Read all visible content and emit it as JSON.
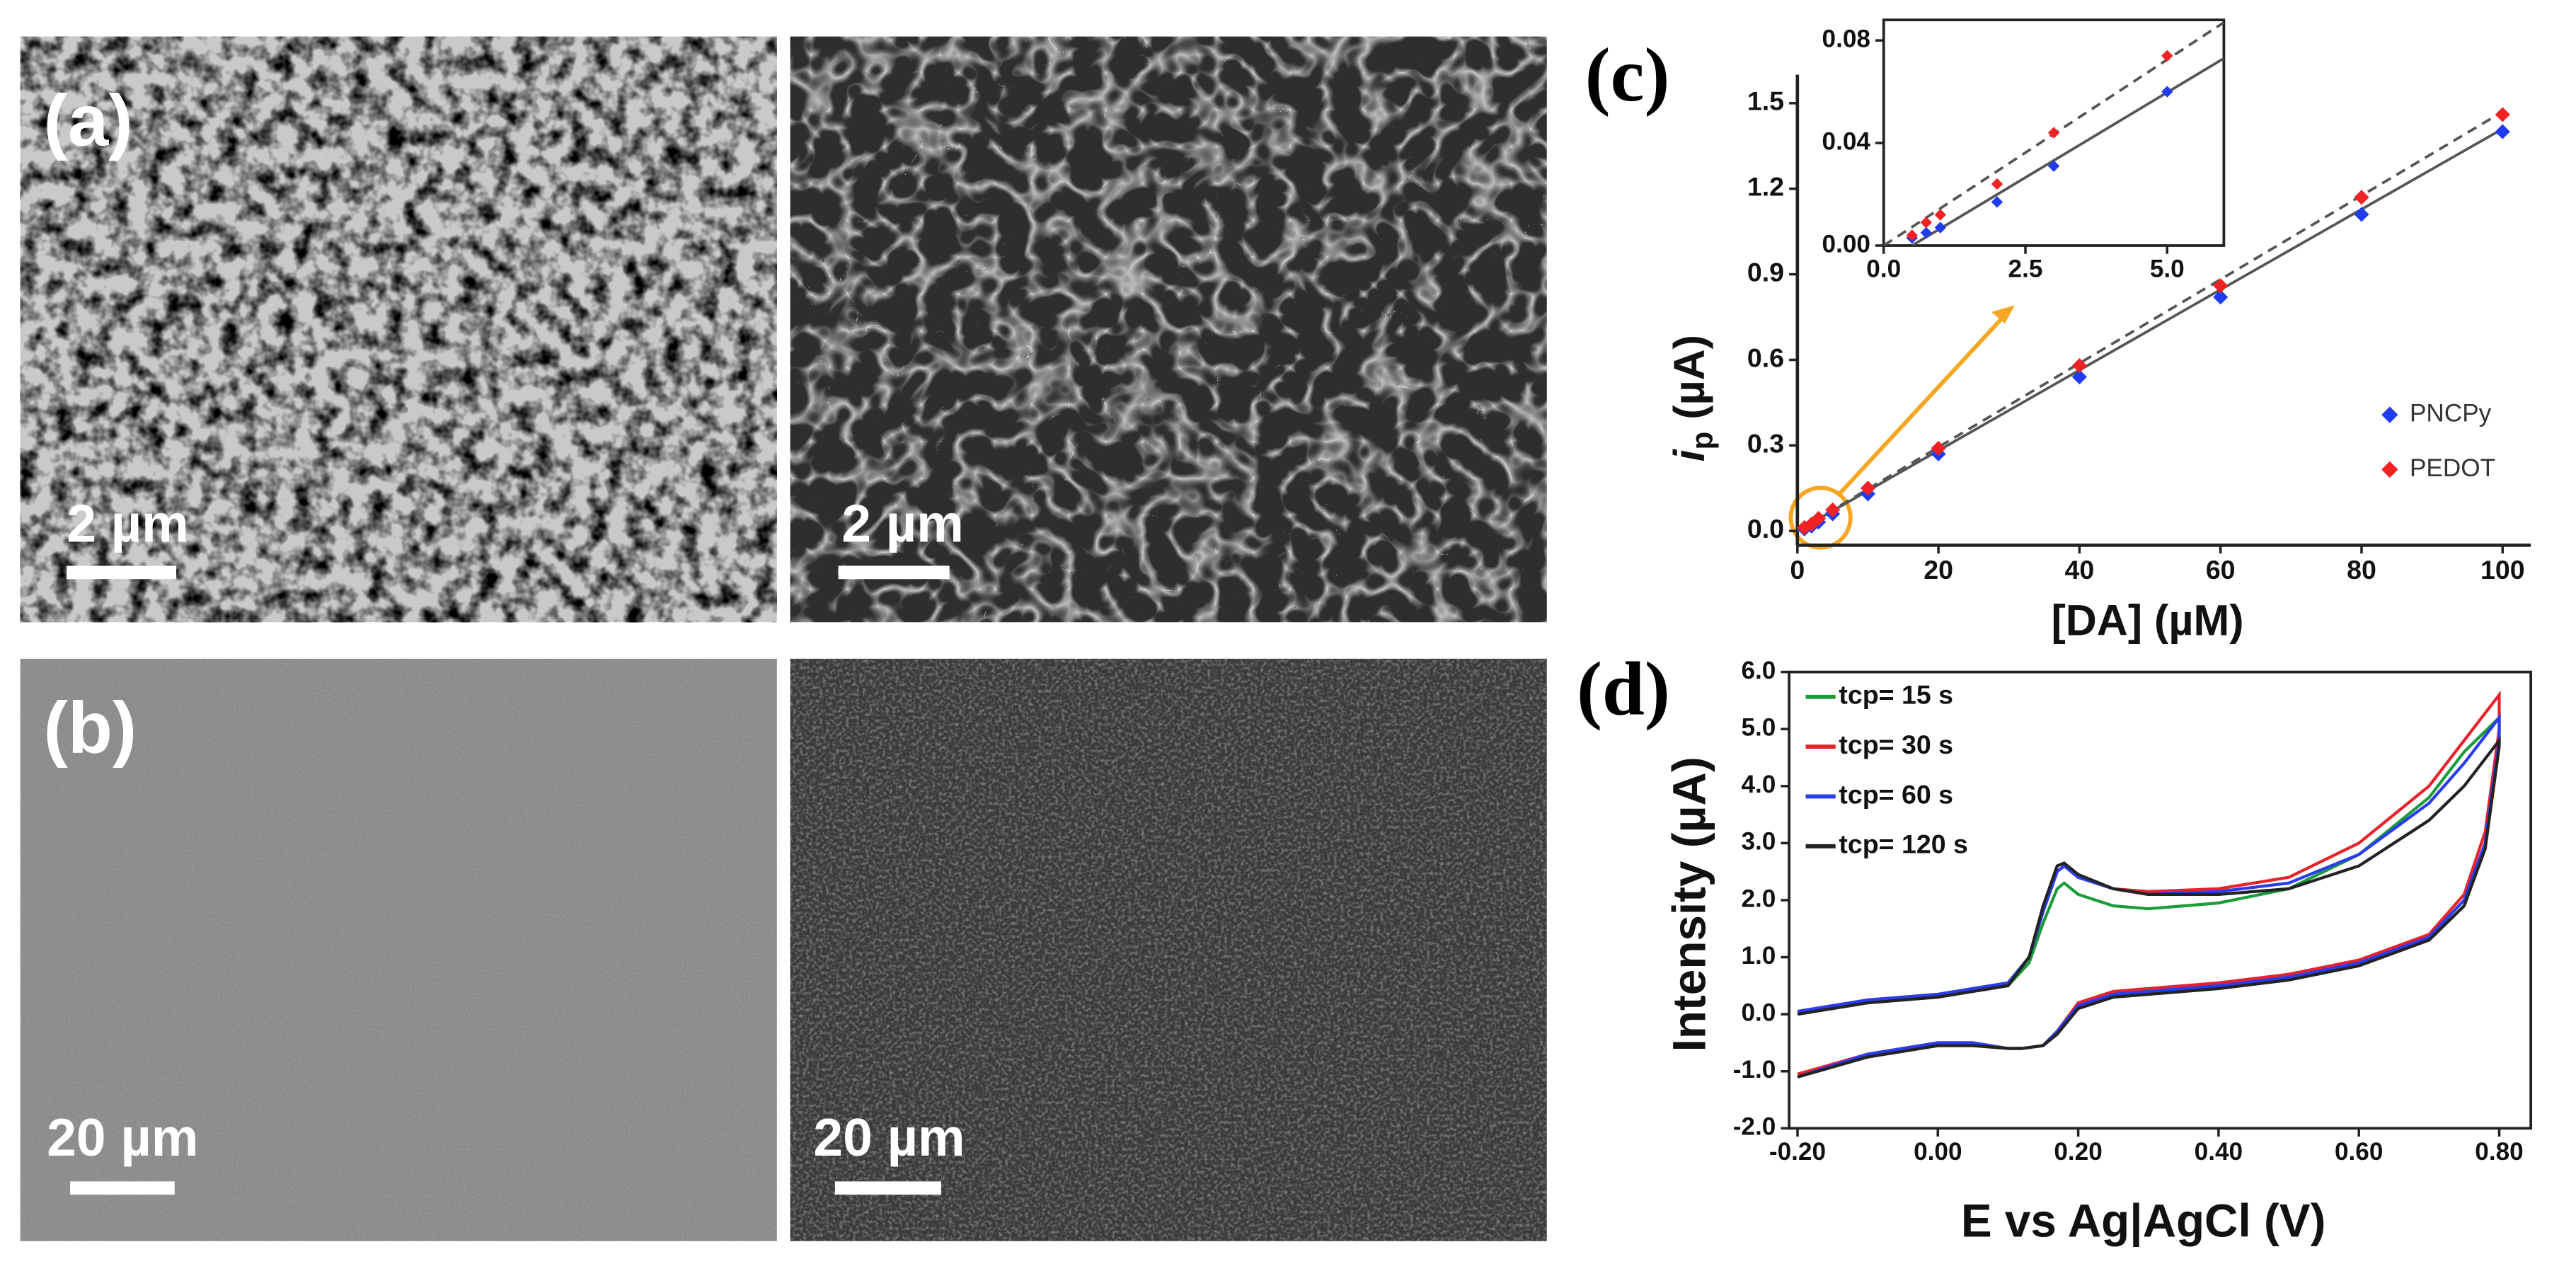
{
  "figure": {
    "panel_a": "(a)",
    "panel_b": "(b)",
    "scale_bars": [
      "2 µm",
      "2 µm",
      "20 µm",
      "20 µm"
    ]
  },
  "chart_data": [
    {
      "type": "scatter",
      "panel": "(c)",
      "xlabel": "[DA] (µM)",
      "ylabel": {
        "main": "i",
        "sub": "p",
        "unit": " (µA)"
      },
      "x": [
        1,
        2,
        3,
        5,
        10,
        20,
        40,
        60,
        80,
        100
      ],
      "series": [
        {
          "name": "PNCPy",
          "color": "#1f3cf0",
          "values": [
            0.007,
            0.017,
            0.031,
            0.06,
            0.13,
            0.27,
            0.54,
            0.82,
            1.11,
            1.4
          ]
        },
        {
          "name": "PEDOT",
          "color": "#f22222",
          "values": [
            0.012,
            0.024,
            0.044,
            0.074,
            0.15,
            0.29,
            0.58,
            0.86,
            1.17,
            1.46
          ]
        }
      ],
      "fits": [
        {
          "color": "#555555",
          "dashed": false,
          "x": [
            0,
            100
          ],
          "values": [
            0,
            1.41
          ]
        },
        {
          "color": "#555555",
          "dashed": true,
          "x": [
            0,
            100
          ],
          "values": [
            0,
            1.47
          ]
        }
      ],
      "xlim": [
        0,
        104
      ],
      "ylim": [
        -0.05,
        1.6
      ],
      "xticks": [
        0,
        20,
        40,
        60,
        80,
        100
      ],
      "yticks": [
        {
          "value": 0,
          "label": "0.0"
        },
        {
          "value": 0.3,
          "label": "0.3"
        },
        {
          "value": 0.6,
          "label": "0.6"
        },
        {
          "value": 0.9,
          "label": "0.9"
        },
        {
          "value": 1.2,
          "label": "1.2"
        },
        {
          "value": 1.5,
          "label": "1.5"
        }
      ],
      "legend": "lower right",
      "inset": {
        "type": "scatter",
        "x": [
          0.5,
          0.75,
          1,
          2,
          3,
          5
        ],
        "series": [
          {
            "name": "PNCPy",
            "color": "#1f3cf0",
            "values": [
              0.003,
              0.005,
              0.007,
              0.017,
              0.031,
              0.06
            ]
          },
          {
            "name": "PEDOT",
            "color": "#f22222",
            "values": [
              0.004,
              0.009,
              0.012,
              0.024,
              0.044,
              0.074
            ]
          }
        ],
        "fits": [
          {
            "color": "#555555",
            "dashed": false,
            "x": [
              0.5,
              6
            ],
            "values": [
              0,
              0.073
            ]
          },
          {
            "color": "#555555",
            "dashed": true,
            "x": [
              0,
              6
            ],
            "values": [
              0,
              0.087
            ]
          }
        ],
        "xlim": [
          0,
          6
        ],
        "ylim": [
          0,
          0.088
        ],
        "xticks": [
          {
            "value": 0,
            "label": "0.0"
          },
          {
            "value": 2.5,
            "label": "2.5"
          },
          {
            "value": 5,
            "label": "5.0"
          }
        ],
        "yticks": [
          {
            "value": 0,
            "label": "0.00"
          },
          {
            "value": 0.04,
            "label": "0.04"
          },
          {
            "value": 0.08,
            "label": "0.08"
          }
        ]
      }
    },
    {
      "type": "line",
      "panel": "(d)",
      "xlabel": "E vs Ag|AgCl (V)",
      "ylabel": "Intensity (µA)",
      "x": [
        -0.2,
        -0.1,
        0,
        0.05,
        0.1,
        0.13,
        0.15,
        0.17,
        0.18,
        0.2,
        0.25,
        0.3,
        0.4,
        0.5,
        0.6,
        0.7,
        0.75,
        0.8,
        0.8,
        0.78,
        0.75,
        0.7,
        0.6,
        0.5,
        0.4,
        0.3,
        0.25,
        0.2,
        0.17,
        0.15,
        0.12,
        0.1,
        0.05,
        0,
        -0.1,
        -0.2
      ],
      "series": [
        {
          "name": "tcp= 15 s",
          "color": "#1a9c3a",
          "values": [
            0.0,
            0.2,
            0.3,
            0.4,
            0.5,
            0.9,
            1.6,
            2.2,
            2.3,
            2.1,
            1.9,
            1.85,
            1.95,
            2.2,
            2.8,
            3.8,
            4.6,
            5.2,
            4.9,
            3.0,
            1.9,
            1.3,
            0.85,
            0.6,
            0.45,
            0.35,
            0.3,
            0.1,
            -0.3,
            -0.55,
            -0.6,
            -0.6,
            -0.55,
            -0.55,
            -0.75,
            -1.1
          ]
        },
        {
          "name": "tcp= 30 s",
          "color": "#e8222a",
          "values": [
            0.05,
            0.25,
            0.35,
            0.45,
            0.55,
            1.0,
            1.8,
            2.5,
            2.6,
            2.4,
            2.2,
            2.15,
            2.2,
            2.4,
            3.0,
            4.0,
            4.8,
            5.6,
            5.0,
            3.2,
            2.1,
            1.4,
            0.95,
            0.7,
            0.55,
            0.45,
            0.4,
            0.2,
            -0.3,
            -0.55,
            -0.6,
            -0.6,
            -0.5,
            -0.5,
            -0.7,
            -1.05
          ]
        },
        {
          "name": "tcp= 60 s",
          "color": "#2a3cf0",
          "values": [
            0.05,
            0.25,
            0.35,
            0.45,
            0.55,
            1.0,
            1.8,
            2.5,
            2.6,
            2.4,
            2.2,
            2.1,
            2.15,
            2.3,
            2.8,
            3.7,
            4.4,
            5.2,
            4.8,
            3.0,
            2.0,
            1.35,
            0.9,
            0.65,
            0.5,
            0.4,
            0.35,
            0.15,
            -0.3,
            -0.55,
            -0.6,
            -0.6,
            -0.5,
            -0.5,
            -0.7,
            -1.1
          ]
        },
        {
          "name": "tcp= 120 s",
          "color": "#222222",
          "values": [
            0.0,
            0.2,
            0.3,
            0.4,
            0.5,
            1.0,
            1.9,
            2.6,
            2.65,
            2.45,
            2.2,
            2.1,
            2.1,
            2.2,
            2.6,
            3.4,
            4.0,
            4.8,
            4.7,
            2.9,
            1.9,
            1.3,
            0.85,
            0.6,
            0.45,
            0.35,
            0.3,
            0.1,
            -0.35,
            -0.55,
            -0.6,
            -0.6,
            -0.55,
            -0.55,
            -0.75,
            -1.1
          ]
        }
      ],
      "xlim": [
        -0.212,
        0.845
      ],
      "ylim": [
        -2,
        6
      ],
      "xticks": [
        {
          "value": -0.2,
          "label": "-0.20"
        },
        {
          "value": 0,
          "label": "0.00"
        },
        {
          "value": 0.2,
          "label": "0.20"
        },
        {
          "value": 0.4,
          "label": "0.40"
        },
        {
          "value": 0.6,
          "label": "0.60"
        },
        {
          "value": 0.8,
          "label": "0.80"
        }
      ],
      "yticks": [
        {
          "value": -2,
          "label": "-2.0"
        },
        {
          "value": -1,
          "label": "-1.0"
        },
        {
          "value": 0,
          "label": "0.0"
        },
        {
          "value": 1,
          "label": "1.0"
        },
        {
          "value": 2,
          "label": "2.0"
        },
        {
          "value": 3,
          "label": "3.0"
        },
        {
          "value": 4,
          "label": "4.0"
        },
        {
          "value": 5,
          "label": "5.0"
        },
        {
          "value": 6,
          "label": "6.0"
        }
      ],
      "legend": "upper left"
    }
  ]
}
